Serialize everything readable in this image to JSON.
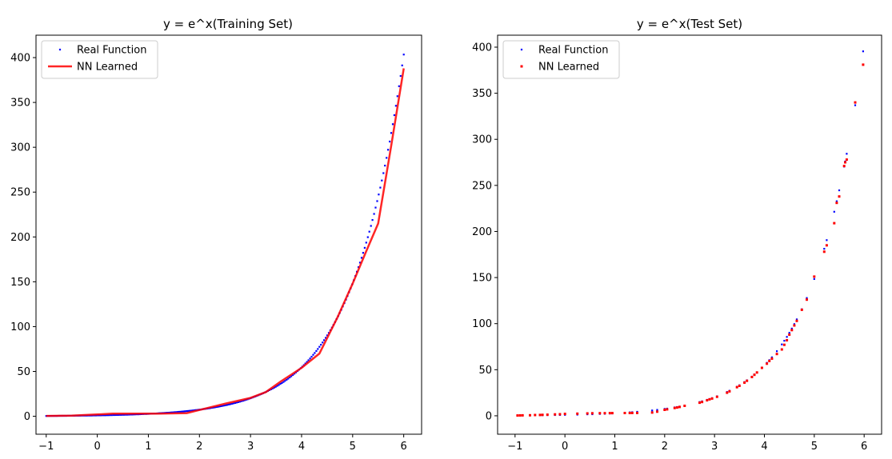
{
  "chart_data": [
    {
      "type": "scatter",
      "title": "y = e^x(Training Set)",
      "xlabel": "",
      "ylabel": "",
      "xlim": [
        -1.2,
        6.35
      ],
      "ylim": [
        -20,
        425
      ],
      "xticks": [
        -1,
        0,
        1,
        2,
        3,
        4,
        5,
        6
      ],
      "yticks": [
        0,
        50,
        100,
        150,
        200,
        250,
        300,
        350,
        400
      ],
      "grid": false,
      "legend": "upper-left",
      "series": [
        {
          "name": "Real Function",
          "kind": "points",
          "color": "#0000ff",
          "function": "exp",
          "x_range": [
            -1,
            6
          ],
          "n_points": 230
        },
        {
          "name": "NN Learned",
          "kind": "line",
          "color": "#ff0000",
          "x": [
            -1,
            -0.5,
            0,
            0.3,
            0.8,
            1.2,
            1.75,
            2.0,
            2.5,
            3.0,
            3.3,
            3.6,
            4.0,
            4.35,
            4.7,
            5.0,
            5.25,
            5.5,
            5.75,
            6.0
          ],
          "y": [
            0.4,
            0.8,
            2.0,
            2.9,
            2.9,
            3.0,
            3.5,
            7.0,
            14.0,
            20.5,
            27.0,
            39.0,
            54.0,
            70.0,
            110.0,
            148.0,
            182.0,
            215.0,
            300.0,
            388.0
          ]
        }
      ]
    },
    {
      "type": "scatter",
      "title": "y = e^x(Test Set)",
      "xlabel": "",
      "ylabel": "",
      "xlim": [
        -1.35,
        6.35
      ],
      "ylim": [
        -20,
        413
      ],
      "xticks": [
        -1,
        0,
        1,
        2,
        3,
        4,
        5,
        6
      ],
      "yticks": [
        0,
        50,
        100,
        150,
        200,
        250,
        300,
        350,
        400
      ],
      "grid": false,
      "legend": "upper-left",
      "series": [
        {
          "name": "Real Function",
          "kind": "points",
          "color": "#0000ff",
          "function": "exp",
          "x": [
            -0.95,
            -0.9,
            -0.85,
            -0.7,
            -0.6,
            -0.5,
            -0.45,
            -0.35,
            -0.2,
            -0.1,
            0.0,
            0.25,
            0.45,
            0.55,
            0.7,
            0.8,
            0.9,
            0.95,
            1.2,
            1.3,
            1.35,
            1.45,
            1.75,
            1.85,
            2.0,
            2.05,
            2.2,
            2.25,
            2.3,
            2.4,
            2.7,
            2.75,
            2.85,
            2.9,
            2.95,
            3.05,
            3.25,
            3.3,
            3.45,
            3.5,
            3.6,
            3.65,
            3.75,
            3.8,
            3.85,
            3.95,
            4.05,
            4.1,
            4.15,
            4.25,
            4.35,
            4.4,
            4.45,
            4.5,
            4.55,
            4.6,
            4.65,
            4.75,
            4.85,
            5.0,
            5.2,
            5.25,
            5.4,
            5.45,
            5.5,
            5.6,
            5.62,
            5.65,
            5.82,
            5.98
          ],
          "y": [
            0.39,
            0.41,
            0.43,
            0.5,
            0.55,
            0.61,
            0.64,
            0.7,
            0.82,
            0.9,
            1.0,
            1.28,
            1.57,
            1.73,
            2.01,
            2.23,
            2.46,
            2.59,
            3.32,
            3.67,
            3.86,
            4.26,
            5.75,
            6.36,
            7.39,
            7.77,
            9.03,
            9.49,
            9.97,
            11.02,
            14.88,
            15.64,
            17.29,
            18.17,
            19.11,
            21.12,
            25.79,
            27.11,
            31.5,
            33.12,
            36.6,
            38.47,
            42.52,
            44.7,
            46.99,
            51.94,
            57.4,
            60.34,
            63.43,
            70.11,
            77.48,
            81.45,
            85.63,
            90.02,
            94.63,
            99.48,
            104.58,
            115.58,
            127.74,
            148.41,
            181.27,
            190.57,
            221.41,
            232.76,
            244.69,
            270.43,
            275.89,
            284.29,
            336.97,
            395.44
          ]
        },
        {
          "name": "NN Learned",
          "kind": "points",
          "color": "#ff0000",
          "x": [
            -0.95,
            -0.9,
            -0.85,
            -0.7,
            -0.6,
            -0.5,
            -0.45,
            -0.35,
            -0.2,
            -0.1,
            0.0,
            0.25,
            0.45,
            0.55,
            0.7,
            0.8,
            0.9,
            0.95,
            1.2,
            1.3,
            1.35,
            1.45,
            1.75,
            1.85,
            2.0,
            2.05,
            2.2,
            2.25,
            2.3,
            2.4,
            2.7,
            2.75,
            2.85,
            2.9,
            2.95,
            3.05,
            3.25,
            3.3,
            3.45,
            3.5,
            3.6,
            3.65,
            3.75,
            3.8,
            3.85,
            3.95,
            4.05,
            4.1,
            4.15,
            4.25,
            4.35,
            4.4,
            4.45,
            4.5,
            4.55,
            4.6,
            4.65,
            4.75,
            4.85,
            5.0,
            5.2,
            5.25,
            5.4,
            5.45,
            5.5,
            5.6,
            5.62,
            5.65,
            5.82,
            5.98
          ],
          "y": [
            0.3,
            0.4,
            0.5,
            0.6,
            0.8,
            0.9,
            1.0,
            1.2,
            1.5,
            1.7,
            2.0,
            2.3,
            2.6,
            2.7,
            2.8,
            2.8,
            2.9,
            2.9,
            3.0,
            3.0,
            3.1,
            3.1,
            3.5,
            4.5,
            6.5,
            7.0,
            8.5,
            9.0,
            9.6,
            10.8,
            14.2,
            15.0,
            16.8,
            17.8,
            18.7,
            20.6,
            25.0,
            26.5,
            31.0,
            32.5,
            36.0,
            38.0,
            42.0,
            44.5,
            47.0,
            52.0,
            56.5,
            59.5,
            62.0,
            67.0,
            72.0,
            77.0,
            82.0,
            88.0,
            93.0,
            98.0,
            103.0,
            115.0,
            126.0,
            151.0,
            178.0,
            185.0,
            209.0,
            231.0,
            238.0,
            271.0,
            275.0,
            278.0,
            340.0,
            381.0
          ]
        }
      ]
    }
  ]
}
